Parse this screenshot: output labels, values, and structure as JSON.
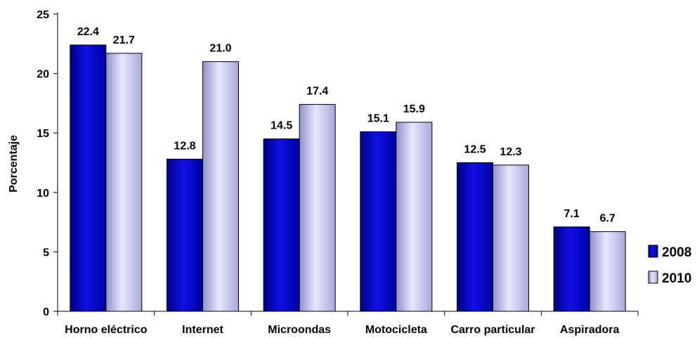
{
  "chart_data": {
    "type": "bar",
    "categories": [
      "Horno eléctrico",
      "Internet",
      "Microondas",
      "Motocicleta",
      "Carro particular",
      "Aspiradora"
    ],
    "series": [
      {
        "name": "2008",
        "values": [
          22.4,
          12.8,
          14.5,
          15.1,
          12.5,
          7.1
        ],
        "labels": [
          "22.4",
          "12.8",
          "14.5",
          "15.1",
          "12.5",
          "7.1"
        ],
        "color": "#0000CC"
      },
      {
        "name": "2010",
        "values": [
          21.7,
          21.0,
          17.4,
          15.9,
          12.3,
          6.7
        ],
        "labels": [
          "21.7",
          "21.0",
          "17.4",
          "15.9",
          "12.3",
          "6.7"
        ],
        "color": "#C8C8F0"
      }
    ],
    "title": "",
    "xlabel": "",
    "ylabel": "Porcentaje",
    "ylim": [
      0,
      25
    ],
    "yticks": [
      0,
      5,
      10,
      15,
      20,
      25
    ],
    "ytick_labels": [
      "0",
      "5",
      "10",
      "15",
      "20",
      "25"
    ],
    "grid": false,
    "legend_position": "right",
    "style": "3d-bars"
  }
}
